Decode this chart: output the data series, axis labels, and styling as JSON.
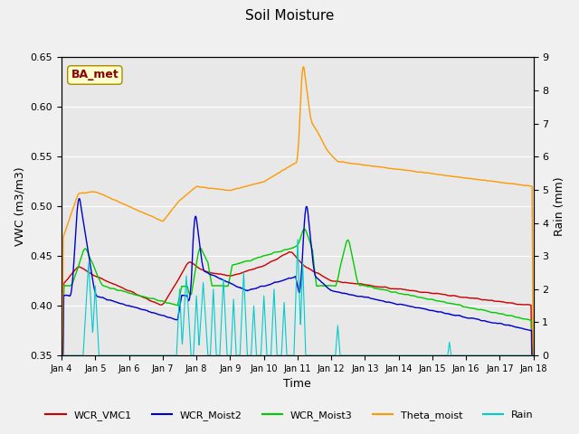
{
  "title": "Soil Moisture",
  "xlabel": "Time",
  "ylabel_left": "VWC (m3/m3)",
  "ylabel_right": "Rain (mm)",
  "ylim_left": [
    0.35,
    0.65
  ],
  "ylim_right": [
    0.0,
    9.0
  ],
  "yticks_left": [
    0.35,
    0.4,
    0.45,
    0.5,
    0.55,
    0.6,
    0.65
  ],
  "yticks_right": [
    0.0,
    1.0,
    2.0,
    3.0,
    4.0,
    5.0,
    6.0,
    7.0,
    8.0,
    9.0
  ],
  "xtick_labels": [
    "Jan 4",
    "Jan 5",
    "Jan 6",
    "Jan 7",
    "Jan 8",
    "Jan 9",
    "Jan 10",
    "Jan 11",
    "Jan 12",
    "Jan 13",
    "Jan 14",
    "Jan 15",
    "Jan 16",
    "Jan 17",
    "Jan 18"
  ],
  "annotation_text": "BA_met",
  "annotation_color": "#8B0000",
  "colors": {
    "WCR_VMC1": "#cc0000",
    "WCR_Moist2": "#0000cc",
    "WCR_Moist3": "#00cc00",
    "Theta_moist": "#ff9900",
    "Rain": "#00cccc"
  },
  "legend_labels": [
    "WCR_VMC1",
    "WCR_Moist2",
    "WCR_Moist3",
    "Theta_moist",
    "Rain"
  ]
}
